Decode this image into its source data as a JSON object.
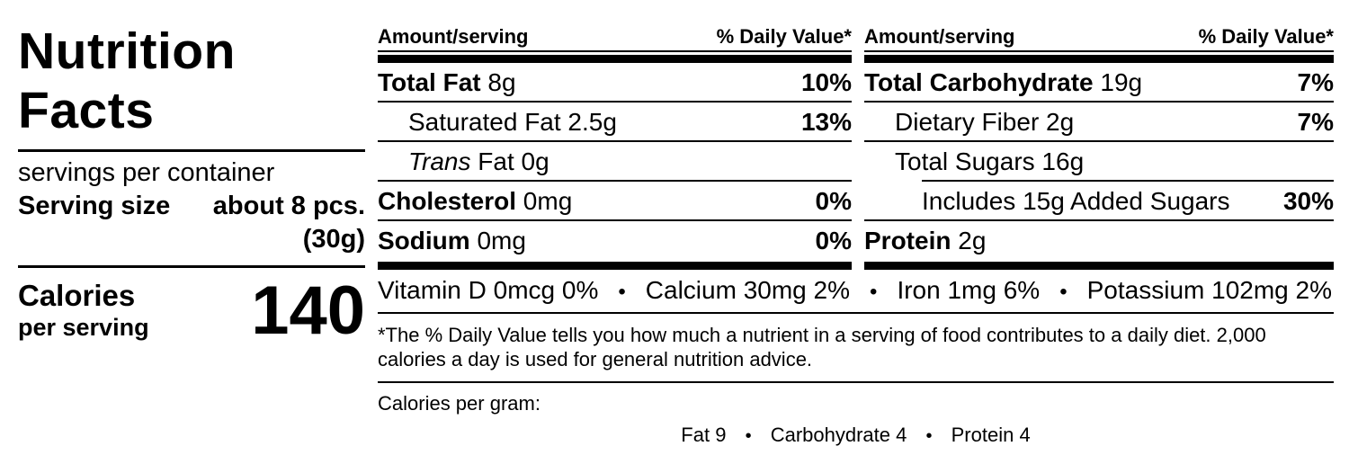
{
  "panel": {
    "title_line1": "Nutrition",
    "title_line2": "Facts",
    "servings_per_container": "servings per container",
    "serving_size_label": "Serving size",
    "serving_size_value": "about 8 pcs. (30g)",
    "calories_label": "Calories",
    "calories_sub": "per serving",
    "calories_value": "140"
  },
  "columns": [
    {
      "header_amount": "Amount/serving",
      "header_dv": "% Daily Value*",
      "rows": [
        {
          "bold": "Total Fat",
          "italic": "",
          "rest": " 8g",
          "dv": "10%"
        },
        {
          "bold": "",
          "italic": "",
          "rest": "Saturated Fat 2.5g",
          "dv": "13%"
        },
        {
          "bold": "",
          "italic": "Trans",
          "rest": " Fat 0g",
          "dv": ""
        },
        {
          "bold": "Cholesterol",
          "italic": "",
          "rest": " 0mg",
          "dv": "0%"
        },
        {
          "bold": "Sodium",
          "italic": "",
          "rest": " 0mg",
          "dv": "0%"
        }
      ]
    },
    {
      "header_amount": "Amount/serving",
      "header_dv": "% Daily Value*",
      "rows": [
        {
          "bold": "Total Carbohydrate",
          "italic": "",
          "rest": " 19g",
          "dv": "7%"
        },
        {
          "bold": "",
          "italic": "",
          "rest": "Dietary Fiber 2g",
          "dv": "7%"
        },
        {
          "bold": "",
          "italic": "",
          "rest": "Total Sugars 16g",
          "dv": ""
        },
        {
          "bold": "",
          "italic": "",
          "rest": "Includes 15g Added Sugars",
          "dv": "30%"
        },
        {
          "bold": "Protein",
          "italic": "",
          "rest": " 2g",
          "dv": ""
        }
      ]
    }
  ],
  "micronutrients": [
    "Vitamin D 0mcg 0%",
    "Calcium 30mg 2%",
    "Iron 1mg 6%",
    "Potassium 102mg 2%"
  ],
  "footnote": "*The % Daily Value tells you how much a nutrient in a serving of food contributes to a daily diet. 2,000 calories a day is used for general nutrition advice.",
  "cpg": {
    "label": "Calories per gram:",
    "items": [
      "Fat 9",
      "Carbohydrate 4",
      "Protein 4"
    ]
  },
  "sep": {
    "bullet": "•"
  },
  "colors": {
    "ink": "#000000",
    "background": "#ffffff"
  }
}
